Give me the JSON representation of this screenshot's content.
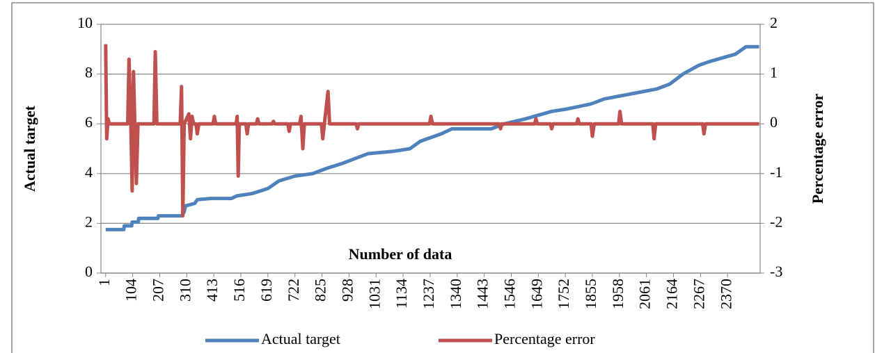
{
  "chart_data": {
    "type": "line",
    "xlabel": "Number of data",
    "ylabel": "Actual target",
    "y2label": "Percentage error",
    "xlim": [
      -17,
      2494
    ],
    "xticks": [
      1,
      104,
      207,
      310,
      413,
      516,
      619,
      722,
      825,
      928,
      1031,
      1134,
      1237,
      1340,
      1443,
      1546,
      1649,
      1752,
      1855,
      1958,
      2061,
      2164,
      2267,
      2370
    ],
    "ylim": [
      0,
      10
    ],
    "yticks": [
      0,
      2,
      4,
      6,
      8,
      10
    ],
    "y2lim": [
      -3,
      2
    ],
    "y2ticks": [
      -3,
      -2,
      -1,
      0,
      1,
      2
    ],
    "grid": true,
    "legend": "bottom",
    "series": [
      {
        "name": "Actual target",
        "color": "#4f81bd",
        "x": [
          1,
          70,
          72,
          100,
          102,
          125,
          127,
          200,
          202,
          290,
          300,
          305,
          340,
          350,
          400,
          480,
          500,
          560,
          619,
          660,
          722,
          790,
          840,
          900,
          950,
          1000,
          1100,
          1160,
          1200,
          1280,
          1320,
          1470,
          1520,
          1600,
          1700,
          1760,
          1850,
          1900,
          2000,
          2100,
          2150,
          2200,
          2260,
          2300,
          2400,
          2440,
          2490
        ],
        "values": [
          1.75,
          1.75,
          1.9,
          1.9,
          2.05,
          2.05,
          2.2,
          2.2,
          2.3,
          2.3,
          2.45,
          2.7,
          2.8,
          2.95,
          3.0,
          3.0,
          3.1,
          3.2,
          3.4,
          3.7,
          3.9,
          4.0,
          4.2,
          4.4,
          4.6,
          4.8,
          4.9,
          5.0,
          5.3,
          5.6,
          5.8,
          5.8,
          6.0,
          6.2,
          6.5,
          6.6,
          6.8,
          7.0,
          7.2,
          7.4,
          7.6,
          8.0,
          8.35,
          8.5,
          8.8,
          9.1,
          9.1
        ]
      },
      {
        "name": "Percentage error",
        "color": "#c0504d",
        "axis": "y2",
        "x": [
          1,
          5,
          10,
          15,
          85,
          90,
          97,
          102,
          107,
          112,
          118,
          124,
          185,
          190,
          196,
          285,
          290,
          295,
          300,
          318,
          324,
          330,
          336,
          345,
          350,
          356,
          410,
          415,
          420,
          498,
          502,
          506,
          510,
          535,
          540,
          545,
          575,
          580,
          585,
          635,
          640,
          645,
          695,
          700,
          705,
          740,
          745,
          752,
          758,
          823,
          828,
          834,
          848,
          854,
          955,
          960,
          965,
          1235,
          1240,
          1246,
          1500,
          1505,
          1510,
          1635,
          1640,
          1645,
          1695,
          1700,
          1705,
          1795,
          1800,
          1805,
          1850,
          1855,
          1862,
          1955,
          1960,
          1966,
          2085,
          2090,
          2096,
          2275,
          2280,
          2286,
          2490
        ],
        "values": [
          1.6,
          -0.3,
          0.1,
          0,
          0,
          1.3,
          0,
          -1.35,
          1.05,
          0,
          -1.2,
          0,
          0,
          1.45,
          0,
          0,
          0.75,
          -1.85,
          0,
          0.2,
          -0.3,
          0.15,
          0,
          0,
          -0.2,
          0,
          0,
          0.15,
          0,
          0,
          0.15,
          -1.05,
          0,
          0,
          -0.2,
          0,
          0,
          0.1,
          0,
          0,
          0.05,
          0,
          0,
          -0.15,
          0,
          0,
          0.15,
          -0.5,
          0,
          0,
          -0.3,
          0,
          0.65,
          0,
          0,
          -0.1,
          0,
          0,
          0.15,
          0,
          0,
          -0.1,
          0,
          0,
          0.1,
          0,
          0,
          -0.1,
          0,
          0,
          0.1,
          0,
          0,
          -0.25,
          0,
          0,
          0.25,
          0,
          0,
          -0.3,
          0,
          0,
          -0.2,
          0,
          0
        ]
      }
    ]
  }
}
